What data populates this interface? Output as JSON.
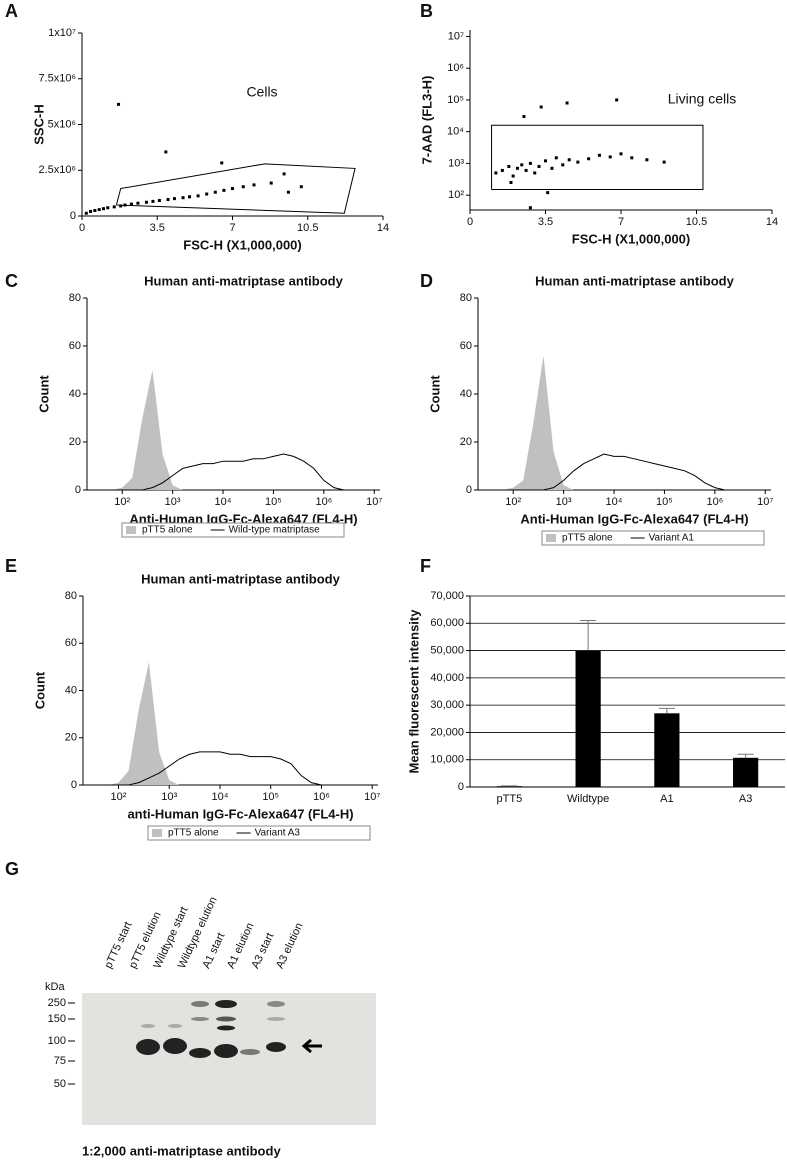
{
  "chart_data": [
    {
      "type": "scatter",
      "panel_label": "A",
      "xlabel": "FSC-H (X1,000,000)",
      "ylabel": "SSC-H",
      "annotation": "Cells",
      "xlim": [
        0,
        14
      ],
      "xticks": [
        0,
        3.5,
        7,
        10.5,
        14
      ],
      "ylim": [
        0,
        10000000
      ],
      "yticks": [
        0,
        {
          "value": 2500000,
          "label": "2.5x10⁶"
        },
        {
          "value": 5000000,
          "label": "5x10⁶"
        },
        {
          "value": 7500000,
          "label": "7.5x10⁶"
        },
        {
          "value": 10000000,
          "label": "1x10⁷"
        }
      ],
      "gate": {
        "x": [
          1.6,
          1.8,
          8.5,
          12.7,
          12.2,
          1.6
        ],
        "y": [
          600000,
          1500000,
          2850000,
          2600000,
          150000,
          600000
        ]
      },
      "series": [
        {
          "color": "#000000",
          "x": [
            0.2,
            0.4,
            0.6,
            0.8,
            1.0,
            1.2,
            1.5,
            1.8,
            2.0,
            2.3,
            2.6,
            3.0,
            3.3,
            3.6,
            4.0,
            4.3,
            4.7,
            5.0,
            5.4,
            5.8,
            6.2,
            6.6,
            7.0,
            7.5,
            8.0,
            8.8,
            9.6,
            10.2,
            1.7,
            3.9,
            6.5,
            9.4
          ],
          "values": [
            150000,
            250000,
            300000,
            350000,
            400000,
            450000,
            500000,
            550000,
            600000,
            650000,
            700000,
            750000,
            800000,
            850000,
            900000,
            950000,
            1000000,
            1050000,
            1100000,
            1200000,
            1300000,
            1400000,
            1500000,
            1600000,
            1700000,
            1800000,
            1300000,
            1600000,
            6100000,
            3500000,
            2900000,
            2300000
          ]
        }
      ]
    },
    {
      "type": "scatter",
      "panel_label": "B",
      "xlabel": "FSC-H (X1,000,000)",
      "ylabel": "7-AAD (FL3-H)",
      "annotation": "Living cells",
      "log_y": true,
      "xlim": [
        0,
        14
      ],
      "xticks": [
        0,
        3.5,
        7,
        10.5,
        14
      ],
      "ylim": [
        34,
        16000000
      ],
      "yticks": [
        {
          "value": 100,
          "label": "10²"
        },
        {
          "value": 1000,
          "label": "10³"
        },
        {
          "value": 10000,
          "label": "10⁴"
        },
        {
          "value": 100000,
          "label": "10⁵"
        },
        {
          "value": 1000000,
          "label": "10⁶"
        },
        {
          "value": 10000000,
          "label": "10⁷"
        }
      ],
      "gate": {
        "x": [
          1.0,
          10.8,
          10.8,
          1.0,
          1.0
        ],
        "y": [
          150,
          150,
          16000,
          16000,
          150
        ]
      },
      "series": [
        {
          "color": "#000000",
          "x": [
            1.2,
            1.5,
            1.8,
            2.0,
            2.2,
            2.4,
            2.6,
            2.8,
            3.0,
            3.2,
            3.5,
            3.8,
            4.0,
            4.3,
            4.6,
            5.0,
            5.5,
            6.0,
            6.5,
            7.0,
            7.5,
            8.2,
            9.0,
            2.5,
            3.3,
            1.9,
            4.5,
            6.8,
            2.8,
            3.6
          ],
          "values": [
            500,
            600,
            800,
            400,
            700,
            900,
            600,
            1000,
            500,
            800,
            1200,
            700,
            1500,
            900,
            1300,
            1100,
            1400,
            1800,
            1600,
            2000,
            1500,
            1300,
            1100,
            30000,
            60000,
            250,
            80000,
            100000,
            40,
            120
          ]
        }
      ]
    },
    {
      "type": "histogram",
      "panel_label": "C",
      "title": "Human anti-matriptase antibody",
      "xlabel": "Anti-Human IgG-Fc-Alexa647 (FL4-H)",
      "ylabel": "Count",
      "log_x": true,
      "xlim": [
        20,
        13000000
      ],
      "xticks": [
        {
          "value": 100,
          "label": "10²"
        },
        {
          "value": 1000,
          "label": "10³"
        },
        {
          "value": 10000,
          "label": "10⁴"
        },
        {
          "value": 100000,
          "label": "10⁵"
        },
        {
          "value": 1000000,
          "label": "10⁶"
        },
        {
          "value": 10000000,
          "label": "10⁷"
        }
      ],
      "ylim": [
        0,
        80
      ],
      "yticks": [
        0,
        20,
        40,
        60,
        80
      ],
      "x": [
        40,
        63,
        100,
        158,
        251,
        398,
        631,
        1000,
        1585,
        2512,
        3981,
        6310,
        10000,
        15849,
        25119,
        39811,
        63096,
        100000,
        158489,
        251189,
        398107,
        630957,
        1000000,
        1584893,
        2511886
      ],
      "series": [
        {
          "name": "pTT5 alone",
          "kind": "area",
          "color": "#c0c0c0",
          "values": [
            0,
            0,
            1,
            5,
            30,
            50,
            15,
            2,
            0,
            0,
            0,
            0,
            0,
            0,
            0,
            0,
            0,
            0,
            0,
            0,
            0,
            0,
            0,
            0,
            0
          ]
        },
        {
          "name": "Wild-type matriptase",
          "kind": "line",
          "color": "#000000",
          "values": [
            0,
            0,
            0,
            0,
            0,
            1,
            3,
            6,
            9,
            10,
            11,
            11,
            12,
            12,
            12,
            13,
            13,
            14,
            15,
            14,
            12,
            9,
            4,
            1,
            0
          ]
        }
      ]
    },
    {
      "type": "histogram",
      "panel_label": "D",
      "title": "Human anti-matriptase antibody",
      "xlabel": "Anti-Human IgG-Fc-Alexa647 (FL4-H)",
      "ylabel": "Count",
      "log_x": true,
      "xlim": [
        20,
        13000000
      ],
      "xticks": [
        {
          "value": 100,
          "label": "10²"
        },
        {
          "value": 1000,
          "label": "10³"
        },
        {
          "value": 10000,
          "label": "10⁴"
        },
        {
          "value": 100000,
          "label": "10⁵"
        },
        {
          "value": 1000000,
          "label": "10⁶"
        },
        {
          "value": 10000000,
          "label": "10⁷"
        }
      ],
      "ylim": [
        0,
        80
      ],
      "yticks": [
        0,
        20,
        40,
        60,
        80
      ],
      "x": [
        40,
        63,
        100,
        158,
        251,
        398,
        631,
        1000,
        1585,
        2512,
        3981,
        6310,
        10000,
        15849,
        25119,
        39811,
        63096,
        100000,
        158489,
        251189,
        398107,
        630957,
        1000000,
        1584893,
        2511886
      ],
      "series": [
        {
          "name": "pTT5 alone",
          "kind": "area",
          "color": "#c0c0c0",
          "values": [
            0,
            0,
            1,
            4,
            28,
            56,
            16,
            2,
            0,
            0,
            0,
            0,
            0,
            0,
            0,
            0,
            0,
            0,
            0,
            0,
            0,
            0,
            0,
            0,
            0
          ]
        },
        {
          "name": "Variant A1",
          "kind": "line",
          "color": "#000000",
          "values": [
            0,
            0,
            0,
            0,
            0,
            0,
            1,
            4,
            8,
            11,
            13,
            15,
            14,
            14,
            13,
            12,
            11,
            10,
            9,
            8,
            6,
            3,
            1,
            0,
            0
          ]
        }
      ]
    },
    {
      "type": "histogram",
      "panel_label": "E",
      "title": "Human anti-matriptase antibody",
      "xlabel": "anti-Human IgG-Fc-Alexa647 (FL4-H)",
      "ylabel": "Count",
      "log_x": true,
      "xlim": [
        20,
        13000000
      ],
      "xticks": [
        {
          "value": 100,
          "label": "10²"
        },
        {
          "value": 1000,
          "label": "10³"
        },
        {
          "value": 10000,
          "label": "10⁴"
        },
        {
          "value": 100000,
          "label": "10⁵"
        },
        {
          "value": 1000000,
          "label": "10⁶"
        },
        {
          "value": 10000000,
          "label": "10⁷"
        }
      ],
      "ylim": [
        0,
        80
      ],
      "yticks": [
        0,
        20,
        40,
        60,
        80
      ],
      "x": [
        40,
        63,
        100,
        158,
        251,
        398,
        631,
        1000,
        1585,
        2512,
        3981,
        6310,
        10000,
        15849,
        25119,
        39811,
        63096,
        100000,
        158489,
        251189,
        398107,
        630957,
        1000000,
        1584893,
        2511886
      ],
      "series": [
        {
          "name": "pTT5 alone",
          "kind": "area",
          "color": "#c0c0c0",
          "values": [
            0,
            0,
            1,
            6,
            32,
            52,
            14,
            2,
            0,
            0,
            0,
            0,
            0,
            0,
            0,
            0,
            0,
            0,
            0,
            0,
            0,
            0,
            0,
            0,
            0
          ]
        },
        {
          "name": "Variant A3",
          "kind": "line",
          "color": "#000000",
          "values": [
            0,
            0,
            0,
            0,
            1,
            3,
            5,
            8,
            11,
            13,
            14,
            14,
            14,
            13,
            13,
            12,
            12,
            12,
            11,
            9,
            4,
            1,
            0,
            0,
            0
          ]
        }
      ]
    },
    {
      "type": "bar",
      "panel_label": "F",
      "ylabel": "Mean fluorescent intensity",
      "grid": true,
      "color": "#000000",
      "categories": [
        "pTT5",
        "Wildtype",
        "A1",
        "A3"
      ],
      "values": [
        300,
        50000,
        27000,
        10700
      ],
      "errors": [
        100,
        11000,
        1800,
        1300
      ],
      "ylim": [
        0,
        70000
      ],
      "yticks": [
        0,
        {
          "value": 10000,
          "label": "10,000"
        },
        {
          "value": 20000,
          "label": "20,000"
        },
        {
          "value": 30000,
          "label": "30,000"
        },
        {
          "value": 40000,
          "label": "40,000"
        },
        {
          "value": 50000,
          "label": "50,000"
        },
        {
          "value": 60000,
          "label": "60,000"
        },
        {
          "value": 70000,
          "label": "70,000"
        }
      ]
    }
  ],
  "blot": {
    "panel_label": "G",
    "unit": "kDa",
    "lanes": [
      "pTT5 start",
      "pTT5 elution",
      "Wildtype start",
      "Wildtype elution",
      "A1 start",
      "A1 elution",
      "A3 start",
      "A3 elution"
    ],
    "markers": [
      250,
      150,
      100,
      75,
      50
    ],
    "caption": "1:2,000 anti-matriptase antibody"
  }
}
